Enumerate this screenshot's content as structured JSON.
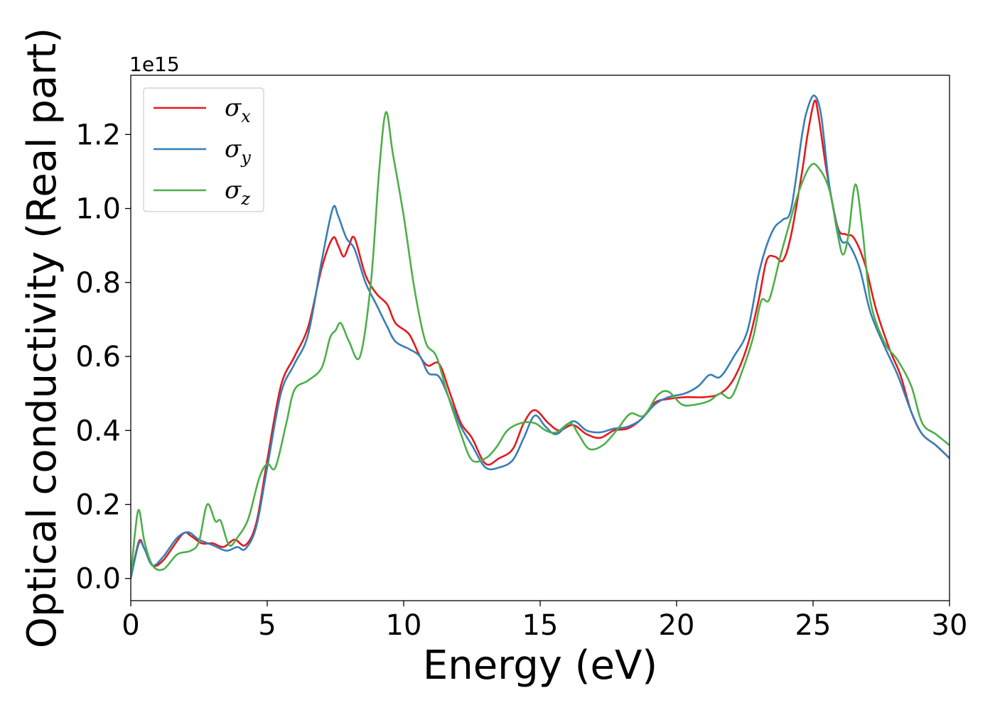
{
  "chart_data": {
    "type": "line",
    "xlabel": "Energy (eV)",
    "ylabel": "Optical conductivity (Real part)",
    "offset_label": "1e15",
    "xlim": [
      0,
      30
    ],
    "ylim": [
      -0.06,
      1.36
    ],
    "xticks": [
      0,
      5,
      10,
      15,
      20,
      25,
      30
    ],
    "yticks": [
      0.0,
      0.2,
      0.4,
      0.6,
      0.8,
      1.0,
      1.2
    ],
    "xtick_labels": [
      "0",
      "5",
      "10",
      "15",
      "20",
      "25",
      "30"
    ],
    "ytick_labels": [
      "0.0",
      "0.2",
      "0.4",
      "0.6",
      "0.8",
      "1.0",
      "1.2"
    ],
    "grid": false,
    "legend": {
      "placement": "top-left"
    },
    "series": [
      {
        "name": "σ",
        "sub": "x",
        "color": "#e41a1c",
        "points": [
          [
            0,
            0.0
          ],
          [
            0.3,
            0.1
          ],
          [
            0.5,
            0.08
          ],
          [
            0.8,
            0.035
          ],
          [
            1.2,
            0.05
          ],
          [
            1.9,
            0.12
          ],
          [
            2.2,
            0.115
          ],
          [
            2.6,
            0.095
          ],
          [
            3.0,
            0.095
          ],
          [
            3.4,
            0.085
          ],
          [
            3.8,
            0.105
          ],
          [
            4.2,
            0.09
          ],
          [
            4.6,
            0.15
          ],
          [
            5.0,
            0.32
          ],
          [
            5.5,
            0.52
          ],
          [
            6.0,
            0.6
          ],
          [
            6.5,
            0.68
          ],
          [
            7.0,
            0.84
          ],
          [
            7.4,
            0.92
          ],
          [
            7.6,
            0.9
          ],
          [
            7.8,
            0.87
          ],
          [
            8.0,
            0.9
          ],
          [
            8.2,
            0.92
          ],
          [
            8.6,
            0.82
          ],
          [
            9.0,
            0.77
          ],
          [
            9.4,
            0.74
          ],
          [
            9.7,
            0.69
          ],
          [
            10.2,
            0.66
          ],
          [
            10.6,
            0.6
          ],
          [
            10.9,
            0.575
          ],
          [
            11.3,
            0.58
          ],
          [
            11.7,
            0.5
          ],
          [
            12.1,
            0.42
          ],
          [
            12.5,
            0.38
          ],
          [
            13.0,
            0.31
          ],
          [
            13.5,
            0.325
          ],
          [
            14.0,
            0.35
          ],
          [
            14.4,
            0.42
          ],
          [
            14.8,
            0.455
          ],
          [
            15.3,
            0.42
          ],
          [
            15.7,
            0.4
          ],
          [
            16.2,
            0.415
          ],
          [
            16.7,
            0.39
          ],
          [
            17.2,
            0.38
          ],
          [
            17.7,
            0.4
          ],
          [
            18.2,
            0.405
          ],
          [
            18.7,
            0.43
          ],
          [
            19.2,
            0.475
          ],
          [
            19.7,
            0.485
          ],
          [
            20.3,
            0.49
          ],
          [
            21.0,
            0.49
          ],
          [
            21.6,
            0.5
          ],
          [
            22.1,
            0.54
          ],
          [
            22.6,
            0.63
          ],
          [
            23.0,
            0.75
          ],
          [
            23.3,
            0.86
          ],
          [
            23.6,
            0.87
          ],
          [
            23.9,
            0.86
          ],
          [
            24.2,
            0.93
          ],
          [
            24.6,
            1.1
          ],
          [
            24.8,
            1.2
          ],
          [
            25.05,
            1.29
          ],
          [
            25.2,
            1.25
          ],
          [
            25.5,
            1.1
          ],
          [
            25.9,
            0.95
          ],
          [
            26.2,
            0.93
          ],
          [
            26.5,
            0.92
          ],
          [
            26.9,
            0.85
          ],
          [
            27.3,
            0.73
          ],
          [
            27.8,
            0.62
          ],
          [
            28.2,
            0.55
          ],
          [
            28.6,
            0.45
          ],
          [
            29.0,
            0.39
          ],
          [
            29.5,
            0.36
          ],
          [
            30.0,
            0.325
          ]
        ]
      },
      {
        "name": "σ",
        "sub": "y",
        "color": "#377eb8",
        "points": [
          [
            0,
            0.0
          ],
          [
            0.3,
            0.095
          ],
          [
            0.5,
            0.08
          ],
          [
            0.8,
            0.035
          ],
          [
            1.2,
            0.06
          ],
          [
            1.7,
            0.11
          ],
          [
            2.1,
            0.125
          ],
          [
            2.5,
            0.105
          ],
          [
            3.0,
            0.09
          ],
          [
            3.5,
            0.075
          ],
          [
            3.9,
            0.085
          ],
          [
            4.2,
            0.08
          ],
          [
            4.6,
            0.14
          ],
          [
            5.0,
            0.3
          ],
          [
            5.5,
            0.5
          ],
          [
            6.0,
            0.58
          ],
          [
            6.5,
            0.66
          ],
          [
            7.0,
            0.86
          ],
          [
            7.4,
            1.0
          ],
          [
            7.6,
            0.98
          ],
          [
            7.9,
            0.92
          ],
          [
            8.2,
            0.89
          ],
          [
            8.6,
            0.8
          ],
          [
            9.0,
            0.74
          ],
          [
            9.4,
            0.68
          ],
          [
            9.7,
            0.64
          ],
          [
            10.2,
            0.62
          ],
          [
            10.6,
            0.6
          ],
          [
            10.9,
            0.555
          ],
          [
            11.3,
            0.545
          ],
          [
            11.7,
            0.48
          ],
          [
            12.1,
            0.41
          ],
          [
            12.5,
            0.36
          ],
          [
            13.0,
            0.3
          ],
          [
            13.5,
            0.3
          ],
          [
            14.0,
            0.32
          ],
          [
            14.4,
            0.38
          ],
          [
            14.8,
            0.44
          ],
          [
            15.2,
            0.41
          ],
          [
            15.6,
            0.39
          ],
          [
            16.2,
            0.425
          ],
          [
            16.7,
            0.4
          ],
          [
            17.2,
            0.395
          ],
          [
            17.7,
            0.405
          ],
          [
            18.2,
            0.41
          ],
          [
            18.7,
            0.43
          ],
          [
            19.2,
            0.47
          ],
          [
            19.7,
            0.49
          ],
          [
            20.3,
            0.5
          ],
          [
            20.8,
            0.52
          ],
          [
            21.2,
            0.55
          ],
          [
            21.6,
            0.545
          ],
          [
            22.1,
            0.6
          ],
          [
            22.6,
            0.67
          ],
          [
            23.0,
            0.82
          ],
          [
            23.3,
            0.9
          ],
          [
            23.6,
            0.95
          ],
          [
            23.9,
            0.97
          ],
          [
            24.2,
            1.0
          ],
          [
            24.6,
            1.2
          ],
          [
            24.8,
            1.27
          ],
          [
            25.05,
            1.305
          ],
          [
            25.3,
            1.25
          ],
          [
            25.6,
            1.06
          ],
          [
            26.0,
            0.92
          ],
          [
            26.3,
            0.905
          ],
          [
            26.7,
            0.84
          ],
          [
            27.1,
            0.72
          ],
          [
            27.6,
            0.63
          ],
          [
            28.1,
            0.55
          ],
          [
            28.6,
            0.45
          ],
          [
            29.0,
            0.39
          ],
          [
            29.5,
            0.36
          ],
          [
            30.0,
            0.325
          ]
        ]
      },
      {
        "name": "σ",
        "sub": "z",
        "color": "#4daf4a",
        "points": [
          [
            0,
            0.0
          ],
          [
            0.15,
            0.12
          ],
          [
            0.3,
            0.185
          ],
          [
            0.5,
            0.1
          ],
          [
            0.8,
            0.035
          ],
          [
            1.2,
            0.025
          ],
          [
            1.7,
            0.065
          ],
          [
            2.2,
            0.075
          ],
          [
            2.5,
            0.1
          ],
          [
            2.8,
            0.2
          ],
          [
            3.1,
            0.155
          ],
          [
            3.3,
            0.155
          ],
          [
            3.6,
            0.09
          ],
          [
            3.9,
            0.11
          ],
          [
            4.3,
            0.16
          ],
          [
            4.7,
            0.27
          ],
          [
            5.0,
            0.31
          ],
          [
            5.3,
            0.3
          ],
          [
            5.7,
            0.42
          ],
          [
            6.0,
            0.51
          ],
          [
            6.5,
            0.535
          ],
          [
            7.0,
            0.57
          ],
          [
            7.3,
            0.65
          ],
          [
            7.5,
            0.67
          ],
          [
            7.7,
            0.69
          ],
          [
            8.0,
            0.64
          ],
          [
            8.4,
            0.6
          ],
          [
            8.8,
            0.8
          ],
          [
            9.1,
            1.1
          ],
          [
            9.35,
            1.26
          ],
          [
            9.6,
            1.15
          ],
          [
            10.0,
            0.98
          ],
          [
            10.4,
            0.78
          ],
          [
            10.8,
            0.64
          ],
          [
            11.2,
            0.6
          ],
          [
            11.6,
            0.5
          ],
          [
            12.1,
            0.39
          ],
          [
            12.5,
            0.32
          ],
          [
            13.0,
            0.325
          ],
          [
            13.4,
            0.355
          ],
          [
            13.8,
            0.4
          ],
          [
            14.3,
            0.42
          ],
          [
            14.8,
            0.42
          ],
          [
            15.2,
            0.4
          ],
          [
            15.6,
            0.395
          ],
          [
            16.1,
            0.42
          ],
          [
            16.4,
            0.39
          ],
          [
            16.8,
            0.35
          ],
          [
            17.3,
            0.36
          ],
          [
            17.8,
            0.4
          ],
          [
            18.3,
            0.445
          ],
          [
            18.8,
            0.44
          ],
          [
            19.3,
            0.495
          ],
          [
            19.7,
            0.505
          ],
          [
            20.2,
            0.47
          ],
          [
            20.7,
            0.47
          ],
          [
            21.2,
            0.48
          ],
          [
            21.6,
            0.5
          ],
          [
            22.0,
            0.49
          ],
          [
            22.4,
            0.56
          ],
          [
            22.8,
            0.65
          ],
          [
            23.1,
            0.75
          ],
          [
            23.4,
            0.755
          ],
          [
            23.8,
            0.87
          ],
          [
            24.1,
            0.95
          ],
          [
            24.5,
            1.05
          ],
          [
            24.9,
            1.115
          ],
          [
            25.2,
            1.11
          ],
          [
            25.6,
            1.05
          ],
          [
            25.9,
            0.93
          ],
          [
            26.1,
            0.875
          ],
          [
            26.3,
            0.93
          ],
          [
            26.55,
            1.065
          ],
          [
            26.8,
            0.95
          ],
          [
            27.1,
            0.75
          ],
          [
            27.6,
            0.64
          ],
          [
            28.1,
            0.59
          ],
          [
            28.6,
            0.52
          ],
          [
            29.0,
            0.42
          ],
          [
            29.5,
            0.39
          ],
          [
            30.0,
            0.36
          ]
        ]
      }
    ]
  }
}
